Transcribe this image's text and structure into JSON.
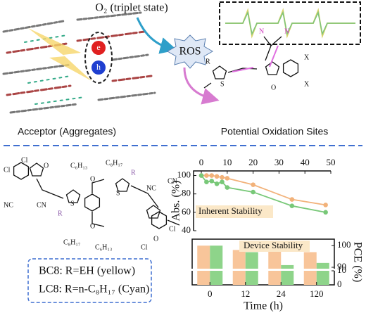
{
  "labels": {
    "oxygen": "O₂ (triplet state)",
    "ros": "ROS",
    "electron": "e",
    "hole": "h",
    "acceptor": "Acceptor (Aggregates)",
    "sites": "Potential Oxidation Sites",
    "bc8": "BC8: R=EH (yellow)",
    "lc8": "LC8: R=n-C₈H₁₇ (Cyan)"
  },
  "structure_top": [
    "R",
    "S",
    "O",
    "N",
    "N",
    "X",
    "X"
  ],
  "structure_bottom": [
    "Cl",
    "Cl",
    "NC",
    "CN",
    "O",
    "O",
    "R",
    "R",
    "S",
    "S",
    "O",
    "O",
    "C₆H₁₃",
    "C₈H₁₇",
    "C₈H₁₇",
    "C₆H₁₃",
    "CN",
    "NC",
    "Cl",
    "Cl"
  ],
  "chart_data": [
    {
      "type": "line",
      "y_label": "Abs. (%)",
      "annotation": "Inherent Stability",
      "x": [
        0,
        2,
        4,
        6,
        8,
        10,
        20,
        35,
        48
      ],
      "series": [
        {
          "color": "#f2b27a",
          "values": [
            100,
            100,
            100,
            99,
            98,
            97,
            90,
            74,
            68
          ]
        },
        {
          "color": "#78c878",
          "values": [
            100,
            93,
            94,
            91,
            93,
            87,
            82,
            67,
            60
          ]
        }
      ],
      "xlim": [
        -3,
        50
      ],
      "xticks": [
        0,
        10,
        20,
        30,
        40,
        50
      ],
      "ylim": [
        40,
        105
      ],
      "yticks": [
        40,
        60,
        80,
        100
      ]
    },
    {
      "type": "bar",
      "x_label": "Time (h)",
      "y_label": "PCE (%)",
      "annotation": "Device Stability",
      "categories": [
        "0",
        "12",
        "24",
        "120"
      ],
      "series": [
        {
          "color": "#f8c59a",
          "values": [
            100,
            98,
            98,
            97
          ]
        },
        {
          "color": "#8ed48a",
          "values": [
            100,
            97,
            91,
            92
          ]
        }
      ],
      "ylim": [
        0,
        103
      ],
      "axis_break": [
        10,
        90
      ],
      "yticks": [
        0,
        10,
        90,
        100
      ]
    }
  ]
}
